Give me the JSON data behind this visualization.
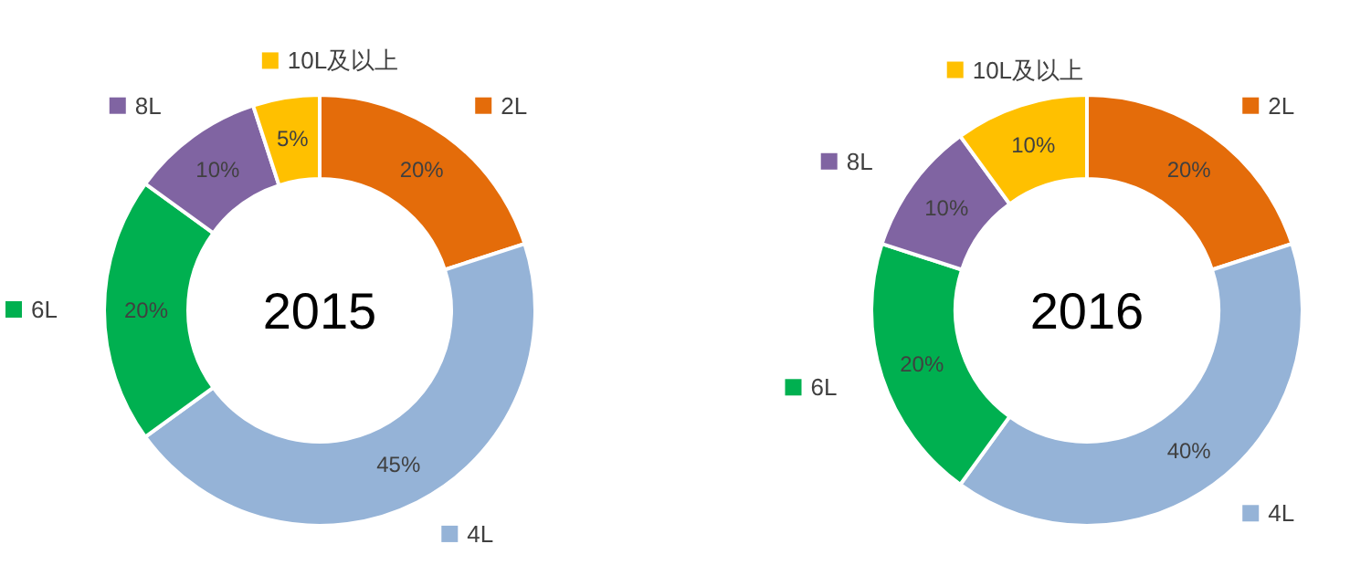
{
  "chart_data": [
    {
      "type": "donut",
      "title": "2015",
      "categories": [
        "2L",
        "4L",
        "6L",
        "8L",
        "10L及以上"
      ],
      "values": [
        20,
        45,
        20,
        10,
        5
      ],
      "value_labels": [
        "20%",
        "45%",
        "20%",
        "10%",
        "5%"
      ],
      "colors": [
        "#e46c0a",
        "#95b3d7",
        "#00b050",
        "#8064a2",
        "#ffc000"
      ],
      "legend": "top left"
    },
    {
      "type": "donut",
      "title": "2016",
      "categories": [
        "2L",
        "4L",
        "6L",
        "8L",
        "10L及以上"
      ],
      "values": [
        20,
        40,
        20,
        10,
        10
      ],
      "value_labels": [
        "20%",
        "40%",
        "20%",
        "10%",
        "10%"
      ],
      "colors": [
        "#e46c0a",
        "#95b3d7",
        "#00b050",
        "#8064a2",
        "#ffc000"
      ],
      "legend": "top left"
    }
  ]
}
